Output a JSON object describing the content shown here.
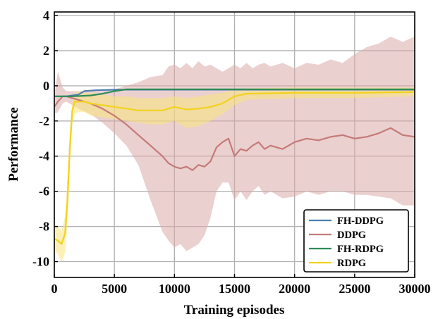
{
  "chart_data": {
    "type": "line",
    "title": "",
    "xlabel": "Training episodes",
    "ylabel": "Performance",
    "xlim": [
      0,
      30000
    ],
    "ylim": [
      -10.9,
      4.2
    ],
    "xticks": [
      0,
      5000,
      10000,
      15000,
      20000,
      25000,
      30000
    ],
    "yticks": [
      4,
      2,
      0,
      -2,
      -4,
      -6,
      -8,
      -10
    ],
    "xtick_labels": [
      "0",
      "5000",
      "10000",
      "15000",
      "20000",
      "25000",
      "30000"
    ],
    "ytick_labels": [
      "4",
      "2",
      "0",
      "-2",
      "-4",
      "-6",
      "-8",
      "-10"
    ],
    "grid": true,
    "legend_position": "bottom-right",
    "series": [
      {
        "name": "FH-DDPG",
        "color": "#4a7fb0",
        "x": [
          0,
          1000,
          2000,
          2500,
          3500,
          5000,
          30000
        ],
        "y": [
          -0.6,
          -0.6,
          -0.5,
          -0.3,
          -0.25,
          -0.22,
          -0.22
        ]
      },
      {
        "name": "DDPG",
        "color": "#c47a78",
        "band_color": "#dba9a9",
        "x": [
          0,
          300,
          700,
          1000,
          1500,
          2000,
          3000,
          4000,
          5000,
          6000,
          7000,
          8000,
          9000,
          9500,
          10000,
          10500,
          11000,
          11500,
          12000,
          12500,
          13000,
          13500,
          14000,
          14500,
          15000,
          15500,
          16000,
          16500,
          17000,
          17500,
          18000,
          19000,
          20000,
          21000,
          22000,
          23000,
          24000,
          25000,
          26000,
          27000,
          28000,
          29000,
          30000
        ],
        "y": [
          -1.2,
          -0.9,
          -0.6,
          -0.6,
          -0.7,
          -0.8,
          -1.0,
          -1.3,
          -1.7,
          -2.2,
          -2.8,
          -3.4,
          -4.0,
          -4.4,
          -4.6,
          -4.7,
          -4.6,
          -4.8,
          -4.5,
          -4.6,
          -4.3,
          -3.5,
          -3.2,
          -3.0,
          -4.0,
          -3.6,
          -3.7,
          -3.4,
          -3.2,
          -3.6,
          -3.4,
          -3.6,
          -3.2,
          -3.0,
          -3.1,
          -2.9,
          -2.8,
          -3.0,
          -2.9,
          -2.7,
          -2.4,
          -2.8,
          -2.9
        ],
        "lower": [
          -1.6,
          -1.5,
          -1.0,
          -0.9,
          -1.1,
          -1.3,
          -1.6,
          -2.1,
          -2.7,
          -3.4,
          -4.5,
          -6.5,
          -8.3,
          -8.8,
          -9.2,
          -9.0,
          -9.4,
          -9.2,
          -9.0,
          -8.5,
          -7.5,
          -6.0,
          -5.5,
          -5.5,
          -6.5,
          -6.0,
          -6.5,
          -6.0,
          -5.7,
          -6.2,
          -6.0,
          -6.4,
          -6.3,
          -6.0,
          -6.2,
          -6.0,
          -6.0,
          -6.2,
          -6.2,
          -6.3,
          -6.4,
          -6.8,
          -6.8
        ],
        "upper": [
          -0.5,
          0.8,
          -0.1,
          -0.3,
          -0.3,
          -0.3,
          -0.3,
          -0.3,
          -0.2,
          0.0,
          0.2,
          0.5,
          0.6,
          1.1,
          1.2,
          1.0,
          1.3,
          1.0,
          1.4,
          1.1,
          1.2,
          1.0,
          0.8,
          1.0,
          1.2,
          1.0,
          1.3,
          1.0,
          1.2,
          1.3,
          1.1,
          1.3,
          1.0,
          1.3,
          1.2,
          1.5,
          1.3,
          1.8,
          2.2,
          2.4,
          2.8,
          2.5,
          2.8
        ]
      },
      {
        "name": "FH-RDPG",
        "color": "#2e8b57",
        "x": [
          0,
          1500,
          3000,
          4000,
          5000,
          6000,
          30000
        ],
        "y": [
          -0.6,
          -0.6,
          -0.55,
          -0.45,
          -0.3,
          -0.2,
          -0.2
        ]
      },
      {
        "name": "RDPG",
        "color": "#f2d21e",
        "band_color": "#f7e57a",
        "x": [
          0,
          300,
          600,
          900,
          1100,
          1300,
          1500,
          1700,
          2000,
          2500,
          3000,
          4000,
          5000,
          6000,
          7000,
          8000,
          9000,
          10000,
          11000,
          12000,
          13000,
          14000,
          15000,
          16000,
          20000,
          25000,
          30000
        ],
        "y": [
          -8.7,
          -8.8,
          -9.0,
          -8.4,
          -6.5,
          -3.5,
          -1.4,
          -0.9,
          -0.9,
          -0.9,
          -1.0,
          -1.1,
          -1.2,
          -1.3,
          -1.4,
          -1.4,
          -1.4,
          -1.2,
          -1.35,
          -1.3,
          -1.2,
          -1.0,
          -0.6,
          -0.45,
          -0.4,
          -0.4,
          -0.35
        ],
        "lower": [
          -9.3,
          -9.6,
          -10.0,
          -9.5,
          -7.8,
          -4.5,
          -2.2,
          -1.6,
          -1.5,
          -1.5,
          -1.7,
          -1.8,
          -1.9,
          -2.0,
          -2.1,
          -2.2,
          -2.2,
          -2.0,
          -2.4,
          -2.3,
          -2.0,
          -1.6,
          -1.1,
          -0.8,
          -0.7,
          -0.7,
          -0.6
        ],
        "upper": [
          -7.9,
          -8.0,
          -8.3,
          -7.4,
          -5.0,
          -2.5,
          -0.9,
          -0.4,
          -0.3,
          -0.4,
          -0.4,
          -0.5,
          -0.6,
          -0.6,
          -0.7,
          -0.7,
          -0.7,
          -0.6,
          -0.7,
          -0.6,
          -0.5,
          -0.4,
          -0.2,
          -0.15,
          -0.1,
          -0.1,
          -0.1
        ]
      }
    ]
  }
}
